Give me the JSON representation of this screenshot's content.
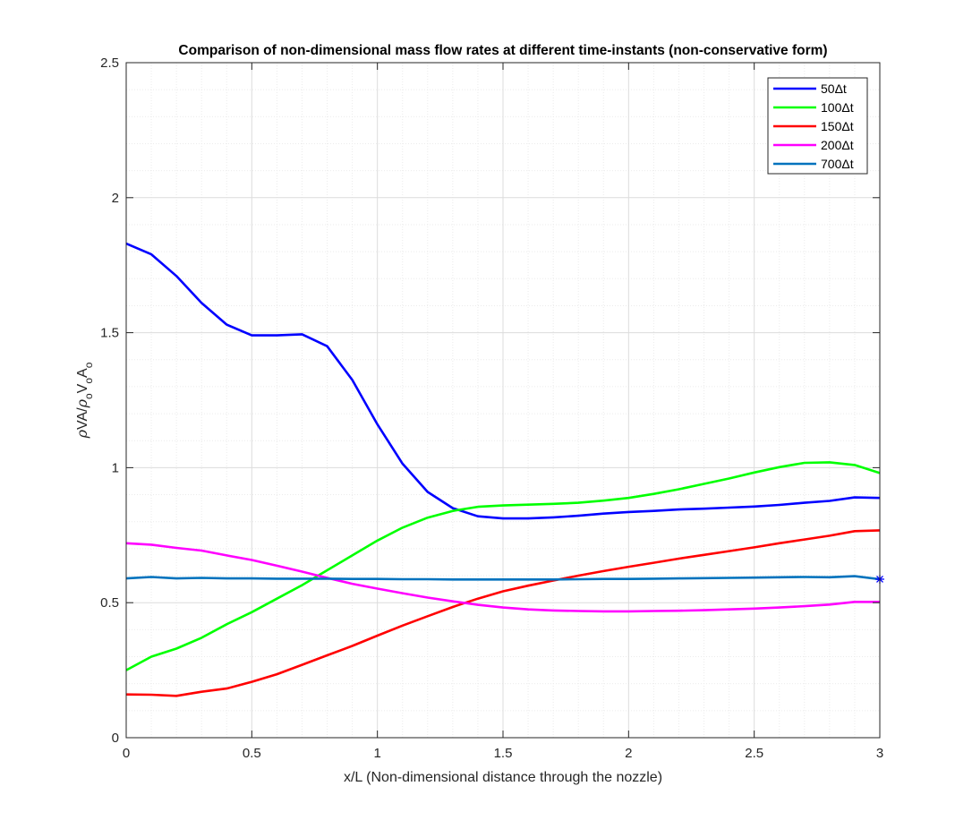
{
  "chart_data": {
    "type": "line",
    "title": "Comparison of non-dimensional mass flow rates at different time-instants (non-conservative form)",
    "xlabel": "x/L (Non-dimensional distance through the nozzle)",
    "ylabel": "ρVA/ρ_o V_o A_o",
    "ylabel_parts": {
      "rho": "ρ",
      "main": "VA/",
      "rho2": "ρ",
      "sub1": "o",
      "v": "V",
      "sub2": "o",
      "a": "A",
      "sub3": "o"
    },
    "xlim": [
      0,
      3
    ],
    "ylim": [
      0,
      2.5
    ],
    "xticks": [
      0,
      0.5,
      1,
      1.5,
      2,
      2.5,
      3
    ],
    "xtick_labels": [
      "0",
      "0.5",
      "1",
      "1.5",
      "2",
      "2.5",
      "3"
    ],
    "yticks": [
      0,
      0.5,
      1,
      1.5,
      2,
      2.5
    ],
    "ytick_labels": [
      "0",
      "0.5",
      "1",
      "1.5",
      "2",
      "2.5"
    ],
    "grid": true,
    "minor_grid": true,
    "legend_position": "top-right",
    "x": [
      0,
      0.1,
      0.2,
      0.3,
      0.4,
      0.5,
      0.6,
      0.7,
      0.8,
      0.9,
      1.0,
      1.1,
      1.2,
      1.3,
      1.4,
      1.5,
      1.6,
      1.7,
      1.8,
      1.9,
      2.0,
      2.1,
      2.2,
      2.3,
      2.4,
      2.5,
      2.6,
      2.7,
      2.8,
      2.9,
      3.0
    ],
    "series": [
      {
        "name": "50Δt",
        "color": "#0000ff",
        "values": [
          1.83,
          1.79,
          1.71,
          1.61,
          1.53,
          1.49,
          1.49,
          1.494,
          1.45,
          1.325,
          1.16,
          1.015,
          0.91,
          0.85,
          0.82,
          0.812,
          0.812,
          0.816,
          0.822,
          0.83,
          0.836,
          0.84,
          0.845,
          0.848,
          0.852,
          0.856,
          0.862,
          0.87,
          0.877,
          0.89,
          0.888
        ]
      },
      {
        "name": "100Δt",
        "color": "#00ff00",
        "values": [
          0.25,
          0.3,
          0.33,
          0.37,
          0.42,
          0.465,
          0.515,
          0.565,
          0.62,
          0.675,
          0.73,
          0.778,
          0.815,
          0.84,
          0.855,
          0.86,
          0.863,
          0.866,
          0.87,
          0.878,
          0.888,
          0.903,
          0.92,
          0.94,
          0.96,
          0.982,
          1.002,
          1.018,
          1.02,
          1.01,
          0.98
        ]
      },
      {
        "name": "150Δt",
        "color": "#ff0000",
        "values": [
          0.16,
          0.159,
          0.155,
          0.17,
          0.182,
          0.207,
          0.235,
          0.27,
          0.305,
          0.34,
          0.378,
          0.415,
          0.45,
          0.484,
          0.515,
          0.542,
          0.563,
          0.582,
          0.6,
          0.617,
          0.633,
          0.648,
          0.663,
          0.677,
          0.691,
          0.705,
          0.72,
          0.734,
          0.748,
          0.765,
          0.768
        ]
      },
      {
        "name": "200Δt",
        "color": "#ff00ff",
        "values": [
          0.72,
          0.715,
          0.703,
          0.693,
          0.675,
          0.658,
          0.637,
          0.615,
          0.592,
          0.57,
          0.552,
          0.535,
          0.519,
          0.505,
          0.492,
          0.482,
          0.475,
          0.471,
          0.469,
          0.468,
          0.468,
          0.469,
          0.47,
          0.472,
          0.475,
          0.478,
          0.482,
          0.487,
          0.493,
          0.503,
          0.503
        ]
      },
      {
        "name": "700Δt",
        "color": "#0072bd",
        "values": [
          0.59,
          0.595,
          0.59,
          0.592,
          0.59,
          0.59,
          0.589,
          0.589,
          0.589,
          0.588,
          0.588,
          0.587,
          0.587,
          0.586,
          0.586,
          0.586,
          0.586,
          0.586,
          0.587,
          0.588,
          0.588,
          0.589,
          0.59,
          0.591,
          0.592,
          0.593,
          0.594,
          0.595,
          0.594,
          0.598,
          0.587
        ]
      }
    ],
    "marker": {
      "x": 3,
      "y": 0.587,
      "symbol": "*",
      "color": "#0000ff"
    }
  }
}
